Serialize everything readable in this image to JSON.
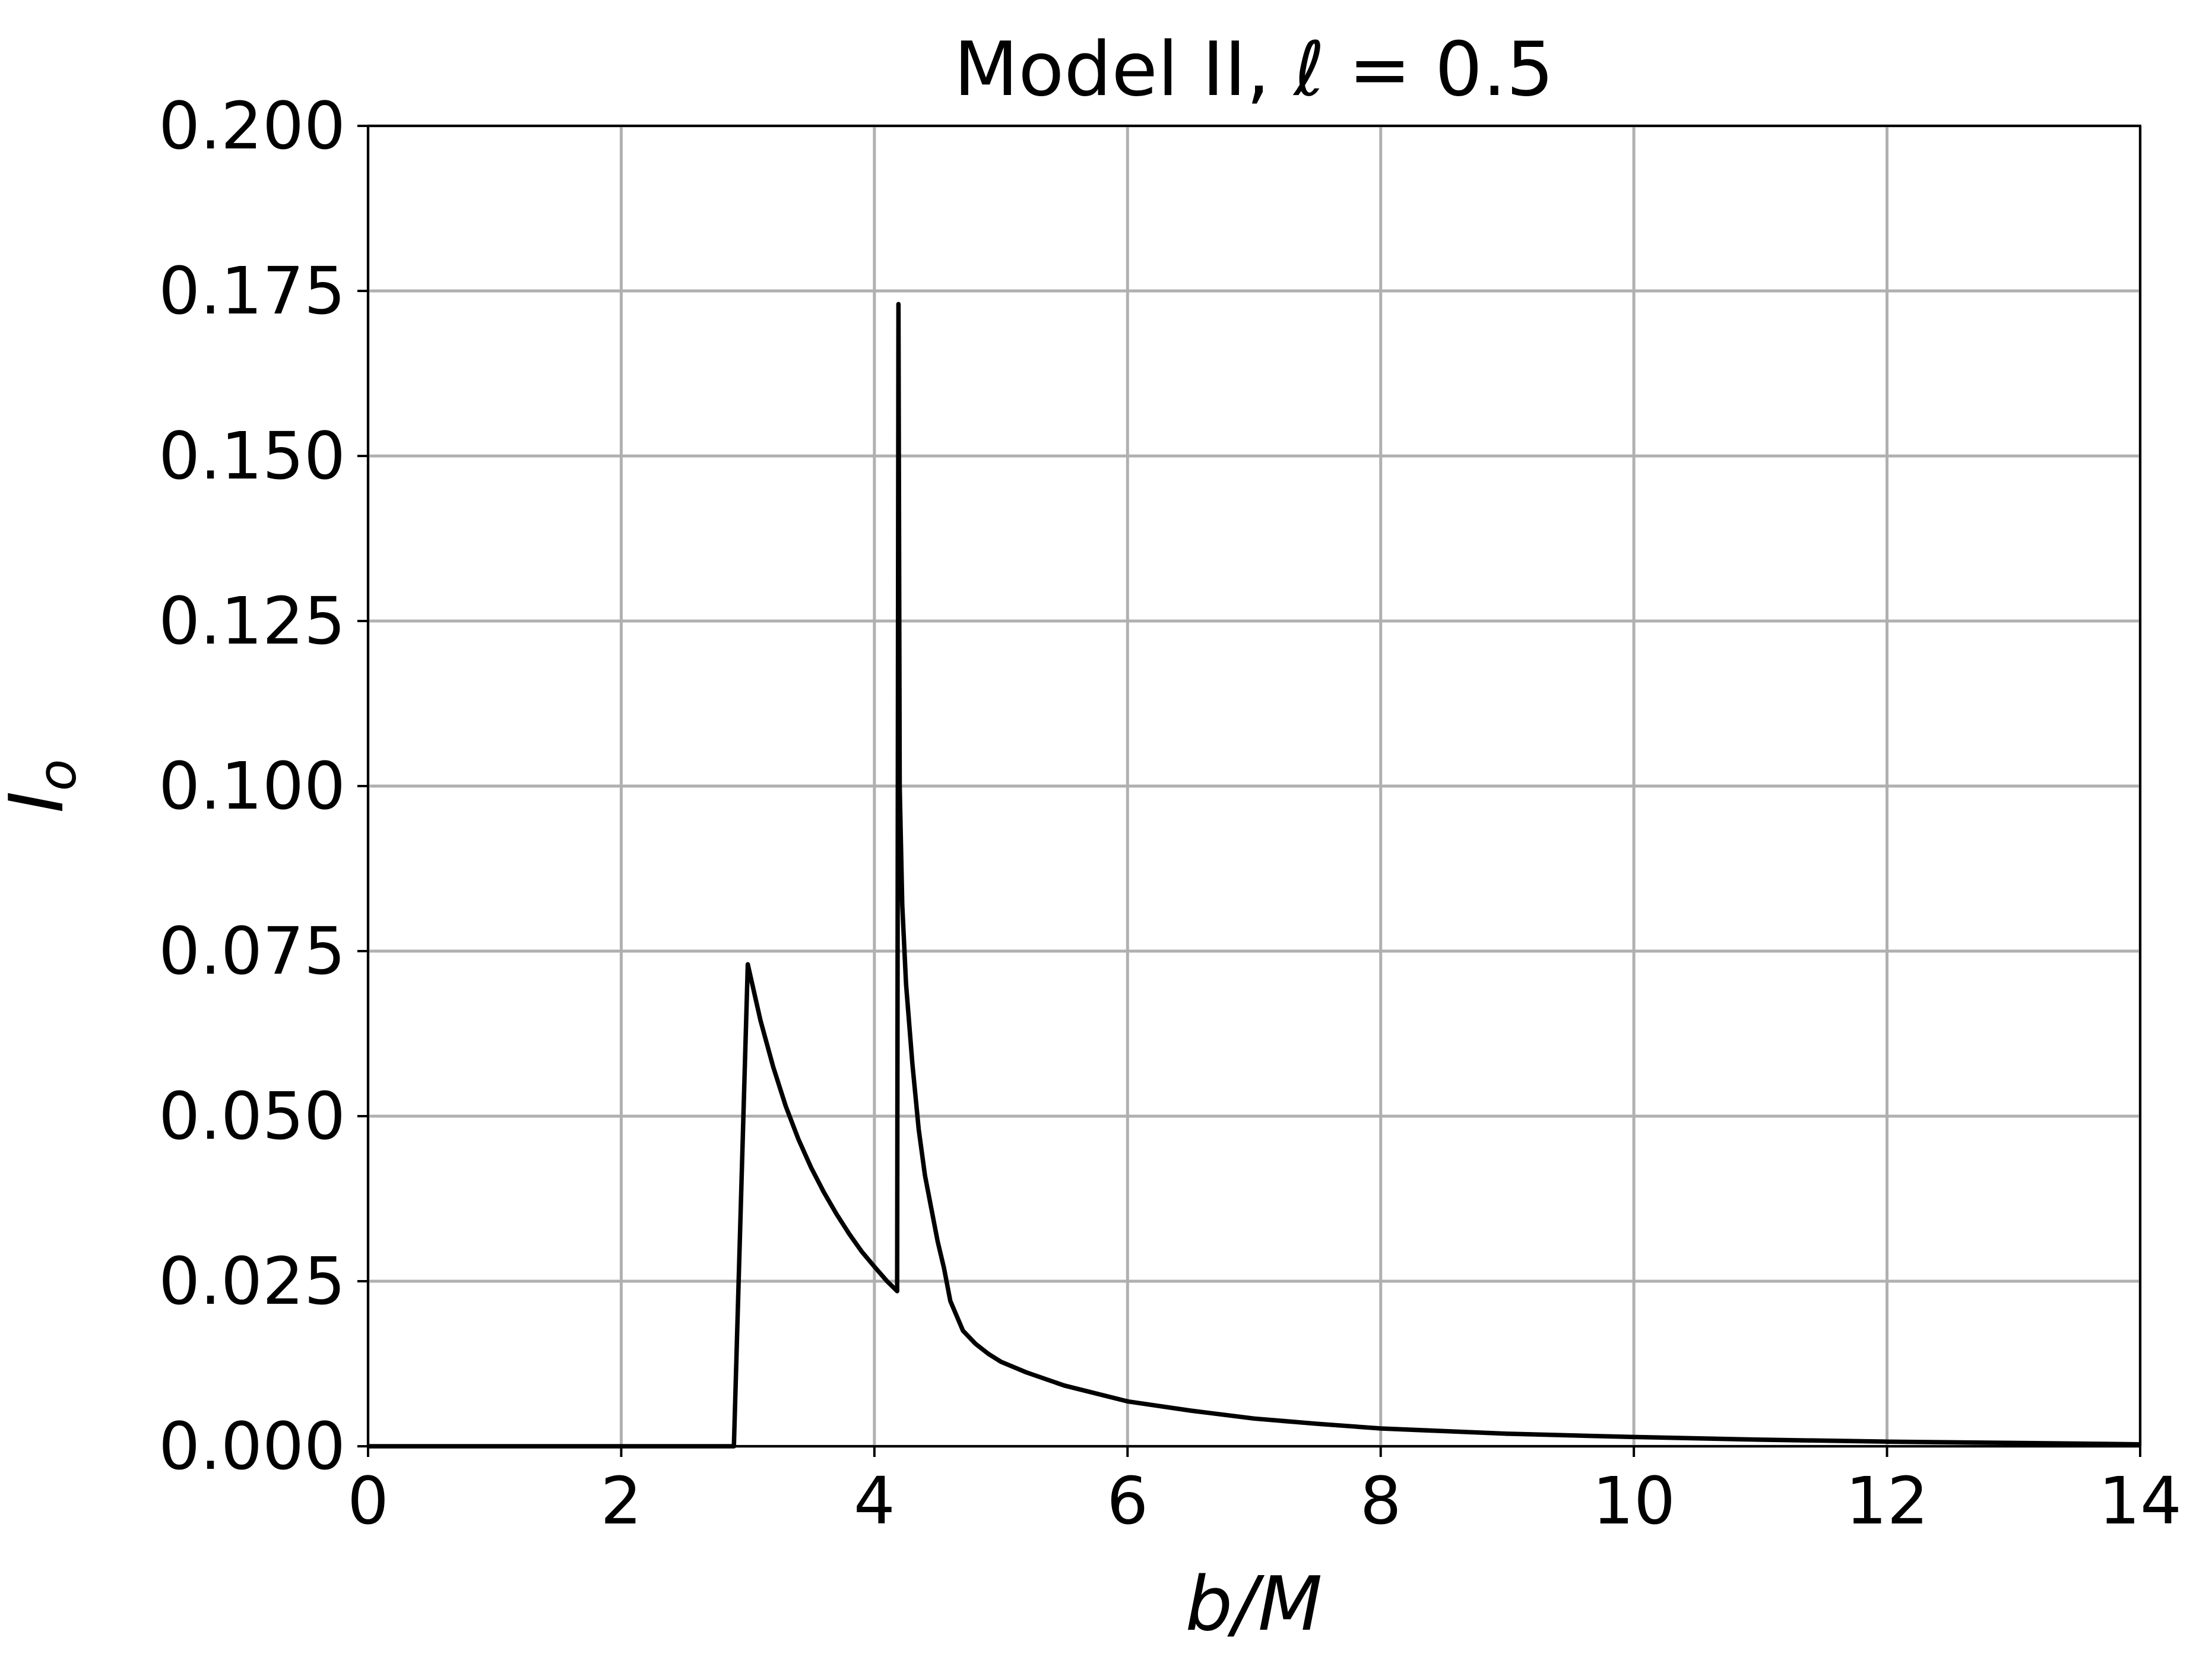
{
  "chart_data": {
    "type": "line",
    "title": "Model II, ℓ = 0.5",
    "xlabel": "b/M",
    "ylabel": "I_o",
    "xlim": [
      0,
      14
    ],
    "ylim": [
      0,
      0.2
    ],
    "grid": true,
    "x_ticks": [
      "0",
      "2",
      "4",
      "6",
      "8",
      "10",
      "12",
      "14"
    ],
    "y_ticks": [
      "0.000",
      "0.025",
      "0.050",
      "0.075",
      "0.100",
      "0.125",
      "0.150",
      "0.175",
      "0.200"
    ],
    "series": [
      {
        "color": "#000000",
        "x": [
          0,
          2.89,
          3.0,
          3.1,
          3.2,
          3.3,
          3.4,
          3.5,
          3.6,
          3.7,
          3.8,
          3.9,
          4.0,
          4.1,
          4.18,
          4.19,
          4.2,
          4.22,
          4.25,
          4.3,
          4.35,
          4.4,
          4.45,
          4.5,
          4.55,
          4.6,
          4.7,
          4.8,
          4.9,
          5.0,
          5.2,
          5.5,
          6.0,
          6.5,
          7.0,
          7.5,
          8.0,
          9.0,
          10.0,
          11.0,
          12.0,
          13.0,
          14.0
        ],
        "y": [
          0.0,
          0.0,
          0.073,
          0.0645,
          0.0575,
          0.0515,
          0.0465,
          0.0422,
          0.0385,
          0.0352,
          0.0322,
          0.0295,
          0.0272,
          0.025,
          0.0235,
          0.173,
          0.1,
          0.082,
          0.07,
          0.058,
          0.048,
          0.041,
          0.036,
          0.031,
          0.027,
          0.022,
          0.0175,
          0.0155,
          0.014,
          0.0128,
          0.0112,
          0.0092,
          0.0068,
          0.0054,
          0.0042,
          0.0034,
          0.0027,
          0.0019,
          0.0014,
          0.001,
          0.0007,
          0.0005,
          0.0003
        ]
      }
    ]
  }
}
